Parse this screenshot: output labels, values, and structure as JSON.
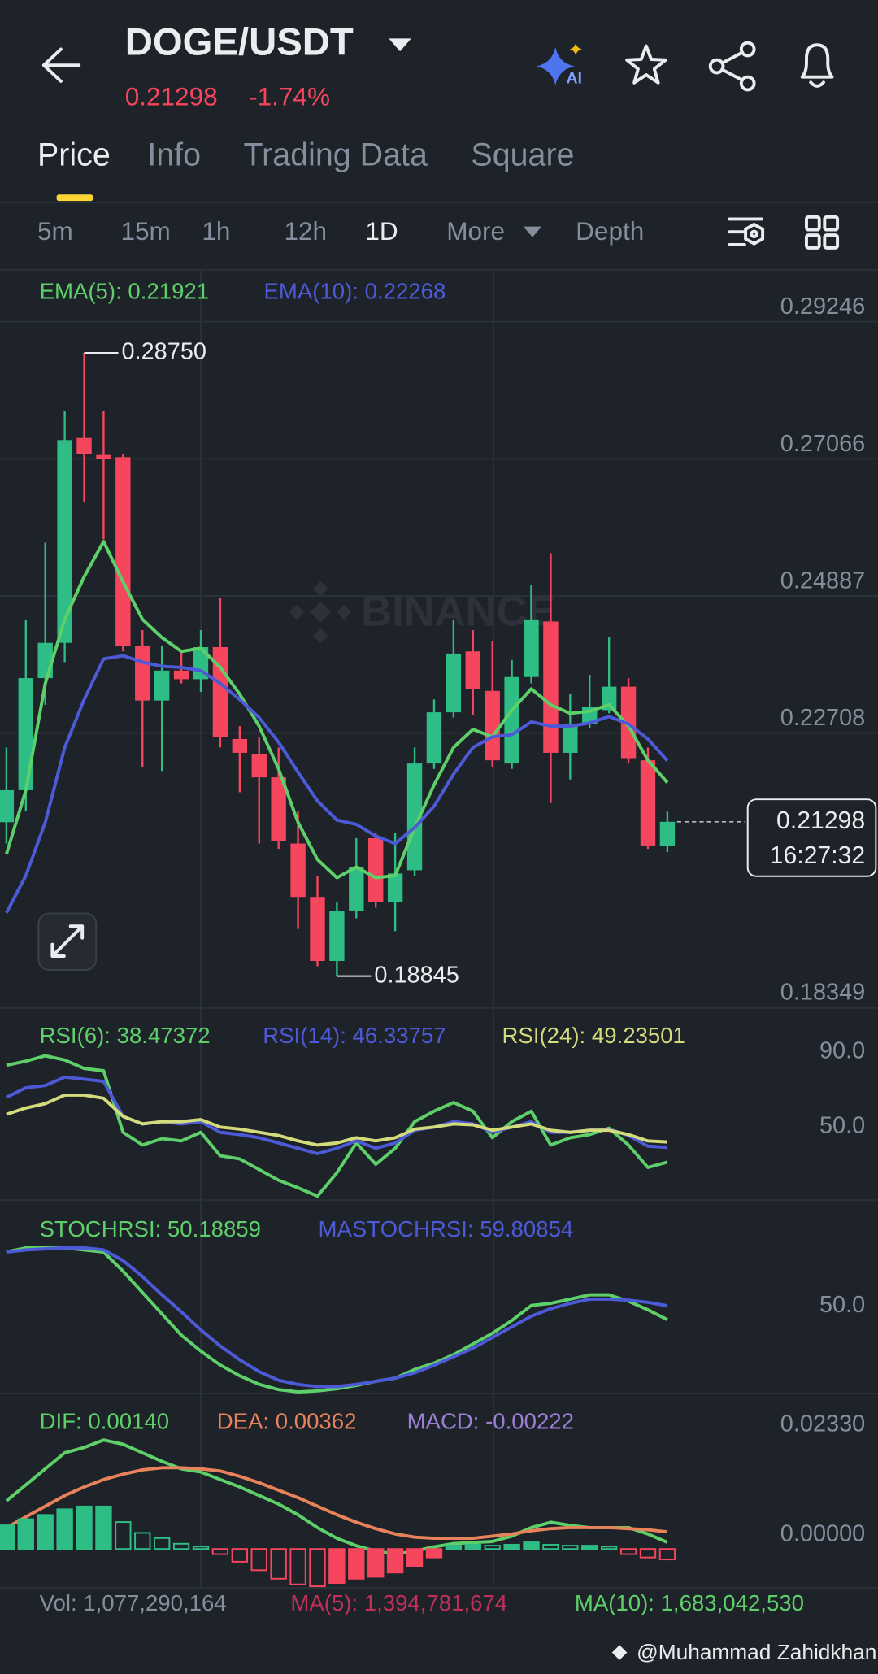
{
  "header": {
    "pair": "DOGE/USDT",
    "change": "-1.74%",
    "ai_badge": "AI"
  },
  "tabs": [
    "Price",
    "Info",
    "Trading Data",
    "Square"
  ],
  "active_tab": 0,
  "intervals": [
    "5m",
    "15m",
    "1h",
    "12h",
    "1D",
    "More",
    "Depth"
  ],
  "active_interval": 4,
  "watermark": "BINANCE",
  "credit": "@Muhammad Zahidkhan",
  "chart_data": [
    {
      "type": "candlestick",
      "up_color": "#2ebd85",
      "down_color": "#f6465d",
      "open": [
        0.21291,
        0.218,
        0.23581,
        0.24141,
        0.27397,
        0.27126,
        0.27092,
        0.2409,
        0.23225,
        0.237,
        0.23564,
        0.24073,
        0.22614,
        0.22377,
        0.22004,
        0.20952,
        0.20104,
        0.19086,
        0.19884,
        0.21037,
        0.20019,
        0.20528,
        0.22224,
        0.23038,
        0.24005,
        0.23378,
        0.22224,
        0.23598,
        0.2448,
        0.22394,
        0.22852,
        0.23072,
        0.23445,
        0.22275,
        0.20918
      ],
      "high": [
        0.22479,
        0.24514,
        0.25735,
        0.27821,
        0.2875,
        0.27821,
        0.27143,
        0.24344,
        0.2409,
        0.24005,
        0.24344,
        0.24853,
        0.22818,
        0.22648,
        0.22479,
        0.21461,
        0.20443,
        0.20019,
        0.21037,
        0.21122,
        0.21122,
        0.22479,
        0.23242,
        0.24514,
        0.24344,
        0.24175,
        0.23869,
        0.25057,
        0.25565,
        0.23327,
        0.23632,
        0.24226,
        0.23581,
        0.22479,
        0.21461
      ],
      "low": [
        0.20952,
        0.21461,
        0.23157,
        0.23835,
        0.2638,
        0.25786,
        0.24005,
        0.22173,
        0.22105,
        0.23496,
        0.23361,
        0.22479,
        0.21766,
        0.20952,
        0.20867,
        0.19595,
        0.19002,
        0.18845,
        0.19765,
        0.19934,
        0.19561,
        0.20443,
        0.22139,
        0.22953,
        0.22987,
        0.22173,
        0.22139,
        0.23496,
        0.21597,
        0.2197,
        0.22784,
        0.23021,
        0.22224,
        0.20867,
        0.20816
      ],
      "close": [
        0.218,
        0.23581,
        0.24141,
        0.27363,
        0.27143,
        0.27058,
        0.2409,
        0.23225,
        0.237,
        0.23564,
        0.24073,
        0.22648,
        0.22394,
        0.22004,
        0.20986,
        0.20104,
        0.19086,
        0.19884,
        0.20579,
        0.20019,
        0.20477,
        0.22224,
        0.23038,
        0.23971,
        0.23411,
        0.22275,
        0.23598,
        0.24514,
        0.22394,
        0.22852,
        0.23123,
        0.23445,
        0.22309,
        0.20918,
        0.21298
      ],
      "series": [
        {
          "name": "EMA(5): 0.21921",
          "color": "#5ed06a",
          "values": [
            0.20782,
            0.218,
            0.23496,
            0.24514,
            0.25192,
            0.25752,
            0.25108,
            0.24514,
            0.24226,
            0.24005,
            0.24056,
            0.23751,
            0.23327,
            0.22818,
            0.22139,
            0.21291,
            0.20698,
            0.20409,
            0.20579,
            0.20409,
            0.20443,
            0.21206,
            0.21885,
            0.22479,
            0.22767,
            0.22648,
            0.23072,
            0.23411,
            0.23157,
            0.23021,
            0.23055,
            0.23157,
            0.22818,
            0.22275,
            0.21921
          ]
        },
        {
          "name": "EMA(10): 0.22268",
          "color": "#4d5ad8",
          "values": [
            0.1985,
            0.20443,
            0.21291,
            0.22479,
            0.23242,
            0.23886,
            0.23937,
            0.23835,
            0.23768,
            0.23751,
            0.237,
            0.23496,
            0.23242,
            0.22953,
            0.22563,
            0.22088,
            0.21631,
            0.21325,
            0.21257,
            0.21071,
            0.20952,
            0.21206,
            0.21546,
            0.22055,
            0.22479,
            0.22648,
            0.22682,
            0.22886,
            0.22818,
            0.22818,
            0.22869,
            0.2297,
            0.22852,
            0.22614,
            0.22268
          ]
        }
      ],
      "ylim": [
        0.18349,
        0.29246
      ],
      "yticks": [
        0.29246,
        0.27066,
        0.24887,
        0.22708,
        0.18349
      ],
      "grid": true,
      "max_label": "0.28750",
      "min_label": "0.18845",
      "last_time": "16:27:32"
    },
    {
      "type": "line",
      "series": [
        {
          "name": "RSI(6): 38.47372",
          "color": "#5ed06a",
          "values": [
            90.2,
            92.4,
            95.3,
            93.0,
            88.5,
            87.3,
            54.4,
            47.6,
            51.0,
            49.8,
            54.4,
            41.9,
            40.2,
            34.5,
            28.8,
            24.8,
            20.3,
            32.8,
            48.7,
            37.3,
            45.9,
            60.1,
            65.7,
            70.3,
            65.7,
            51.5,
            60.1,
            65.7,
            47.6,
            51.5,
            53.2,
            56.6,
            47.6,
            35.6,
            38.47372
          ]
        },
        {
          "name": "RSI(14): 46.33757",
          "color": "#4d5ad8",
          "values": [
            73.1,
            78.2,
            79.4,
            83.9,
            82.8,
            81.6,
            62.9,
            58.9,
            60.1,
            58.9,
            60.1,
            54.4,
            53.2,
            51.5,
            48.7,
            45.9,
            43.0,
            45.9,
            49.8,
            45.9,
            48.7,
            55.5,
            57.2,
            60.1,
            58.9,
            54.4,
            57.2,
            60.1,
            54.4,
            54.4,
            55.5,
            56.1,
            52.7,
            47.0,
            46.33757
          ]
        },
        {
          "name": "RSI(24): 49.23501",
          "color": "#d4db7a",
          "values": [
            64.0,
            67.4,
            69.7,
            74.3,
            74.3,
            72.6,
            62.9,
            58.9,
            60.1,
            60.1,
            61.2,
            57.2,
            56.1,
            54.4,
            52.7,
            49.8,
            47.6,
            48.7,
            51.5,
            49.8,
            51.5,
            56.1,
            57.2,
            58.9,
            58.4,
            55.5,
            57.2,
            58.9,
            55.5,
            54.4,
            55.5,
            55.5,
            53.2,
            49.8,
            49.23501
          ]
        }
      ],
      "ylim": [
        19,
        120
      ],
      "yticks": [
        {
          "value": 90,
          "label": "90.0"
        },
        {
          "value": 50,
          "label": "50.0"
        }
      ],
      "grid": false
    },
    {
      "type": "line",
      "series": [
        {
          "name": "STOCHRSI: 50.18859",
          "color": "#5ed06a",
          "values": [
            97.2,
            100,
            100,
            100,
            98.6,
            97.1,
            83.8,
            69.0,
            54.2,
            39.4,
            28.3,
            18.7,
            11.2,
            5.3,
            1.6,
            0,
            0.7,
            2.2,
            4.5,
            7.4,
            9.6,
            15.6,
            20.0,
            25.9,
            33.3,
            40.7,
            49.6,
            60.0,
            61.5,
            64.4,
            67.4,
            67.4,
            63.0,
            57.0,
            50.18859
          ]
        },
        {
          "name": "MASTOCHRSI: 59.80854",
          "color": "#4d5ad8",
          "values": [
            97.1,
            98.6,
            99.3,
            100,
            100,
            98.6,
            91.2,
            80.1,
            67.4,
            55.6,
            43.0,
            31.9,
            22.3,
            14.1,
            8.1,
            5.2,
            3.7,
            3.7,
            5.2,
            7.4,
            9.6,
            13.3,
            18.5,
            24.4,
            30.4,
            37.8,
            45.2,
            52.6,
            57.8,
            61.5,
            64.4,
            64.4,
            63.7,
            62.2,
            59.80854
          ]
        }
      ],
      "ylim": [
        0,
        132
      ],
      "yticks": [
        {
          "value": 50,
          "label": "50.0"
        }
      ],
      "grid": false
    },
    {
      "type": "macd",
      "up_color": "#2ebd85",
      "down_color": "#f6465d",
      "series": [
        {
          "name": "DIF: 0.00140",
          "color": "#5ed06a",
          "values": [
            0.01018,
            0.01357,
            0.01696,
            0.02036,
            0.02149,
            0.02307,
            0.02217,
            0.02036,
            0.01855,
            0.01696,
            0.01629,
            0.0147,
            0.01312,
            0.01131,
            0.0095,
            0.00724,
            0.00452,
            0.00226,
            0.00068,
            -0.00045,
            -0.00113,
            -0.00045,
            0.00045,
            0.00113,
            0.00136,
            0.00158,
            0.00271,
            0.00452,
            0.00565,
            0.00498,
            0.00452,
            0.00452,
            0.00452,
            0.00317,
            0.0014
          ]
        },
        {
          "name": "DEA: 0.00362",
          "color": "#e8825a",
          "values": [
            0.00452,
            0.00679,
            0.00905,
            0.01131,
            0.01312,
            0.0147,
            0.01583,
            0.01674,
            0.01719,
            0.01719,
            0.01696,
            0.01651,
            0.01538,
            0.01402,
            0.01244,
            0.01086,
            0.00905,
            0.00724,
            0.00565,
            0.0043,
            0.00317,
            0.00249,
            0.00226,
            0.00226,
            0.00226,
            0.00271,
            0.00317,
            0.00385,
            0.0043,
            0.00452,
            0.00452,
            0.00452,
            0.0043,
            0.00407,
            0.00362
          ]
        },
        {
          "name": "MACD: -0.00222",
          "color": "#9b7fd4",
          "style": "histogram",
          "values": [
            0.005,
            0.0063,
            0.0072,
            0.0084,
            0.009,
            0.009,
            0.0057,
            0.0034,
            0.0023,
            0.0011,
            0.0005,
            -0.0011,
            -0.0027,
            -0.0045,
            -0.0063,
            -0.0075,
            -0.0079,
            -0.0072,
            -0.0063,
            -0.0059,
            -0.005,
            -0.0036,
            -0.0018,
            0.0007,
            0.0009,
            0.0007,
            0.0009,
            0.0014,
            0.0009,
            0.0007,
            0.0007,
            0.0005,
            -0.0011,
            -0.0018,
            -0.00222
          ]
        }
      ],
      "ylim": [
        -0.00792,
        0.03257
      ],
      "yticks": [
        {
          "value": 0.0233,
          "label": "0.02330"
        },
        {
          "value": 0,
          "label": "0.00000"
        }
      ],
      "grid": false
    },
    {
      "type": "volume",
      "series": [
        {
          "name": "Vol: 1,077,290,164",
          "color": "#848e9c"
        },
        {
          "name": "MA(5): 1,394,781,674",
          "color": "#c2305a"
        },
        {
          "name": "MA(10): 1,683,042,530",
          "color": "#5ed06a"
        }
      ]
    }
  ]
}
